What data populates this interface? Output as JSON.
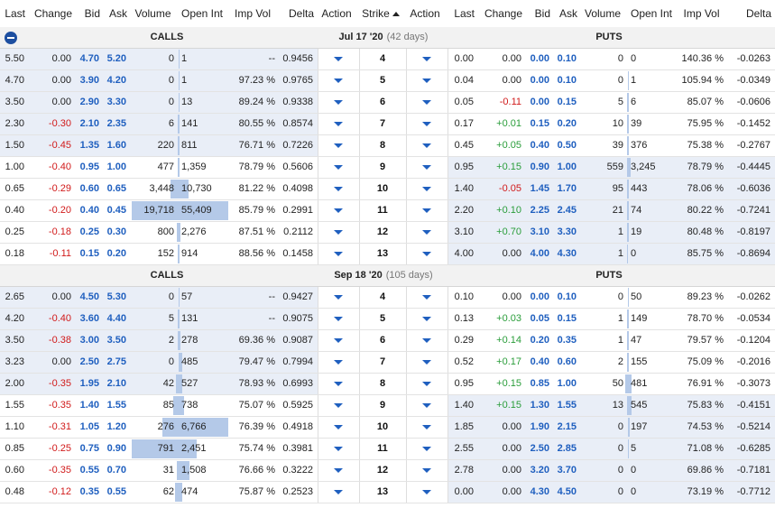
{
  "header": [
    "Last",
    "Change",
    "Bid",
    "Ask",
    "Volume",
    "Open Int",
    "Imp Vol",
    "Delta",
    "Action",
    "Strike",
    "Action",
    "Last",
    "Change",
    "Bid",
    "Ask",
    "Volume",
    "Open Int",
    "Imp Vol",
    "Delta"
  ],
  "groups": [
    {
      "calls_label": "CALLS",
      "expiry": "Jul 17 '20",
      "days": "(42 days)",
      "puts_label": "PUTS",
      "rows": [
        {
          "strike": "4",
          "call": [
            "5.50",
            "0.00",
            "4.70",
            "5.20",
            "0",
            "1",
            "--",
            "0.9456"
          ],
          "put": [
            "0.00",
            "0.00",
            "0.00",
            "0.10",
            "0",
            "0",
            "140.36 %",
            "-0.0263"
          ],
          "call_itm": true,
          "put_itm": false,
          "cvol": 0,
          "coi": 1,
          "pvol": 0,
          "poi": 0
        },
        {
          "strike": "5",
          "call": [
            "4.70",
            "0.00",
            "3.90",
            "4.20",
            "0",
            "1",
            "97.23 %",
            "0.9765"
          ],
          "put": [
            "0.04",
            "0.00",
            "0.00",
            "0.10",
            "0",
            "1",
            "105.94 %",
            "-0.0349"
          ],
          "call_itm": true,
          "put_itm": false,
          "cvol": 0,
          "coi": 1,
          "pvol": 0,
          "poi": 1
        },
        {
          "strike": "6",
          "call": [
            "3.50",
            "0.00",
            "2.90",
            "3.30",
            "0",
            "13",
            "89.24 %",
            "0.9338"
          ],
          "put": [
            "0.05",
            "-0.11",
            "0.00",
            "0.15",
            "5",
            "6",
            "85.07 %",
            "-0.0606"
          ],
          "call_itm": true,
          "put_itm": false,
          "cvol": 0,
          "coi": 13,
          "pvol": 5,
          "poi": 6
        },
        {
          "strike": "7",
          "call": [
            "2.30",
            "-0.30",
            "2.10",
            "2.35",
            "6",
            "141",
            "80.55 %",
            "0.8574"
          ],
          "put": [
            "0.17",
            "+0.01",
            "0.15",
            "0.20",
            "10",
            "39",
            "75.95 %",
            "-0.1452"
          ],
          "call_itm": true,
          "put_itm": false,
          "cvol": 6,
          "coi": 141,
          "pvol": 10,
          "poi": 39
        },
        {
          "strike": "8",
          "call": [
            "1.50",
            "-0.45",
            "1.35",
            "1.60",
            "220",
            "811",
            "76.71 %",
            "0.7226"
          ],
          "put": [
            "0.45",
            "+0.05",
            "0.40",
            "0.50",
            "39",
            "376",
            "75.38 %",
            "-0.2767"
          ],
          "call_itm": true,
          "put_itm": false,
          "cvol": 220,
          "coi": 811,
          "pvol": 39,
          "poi": 376
        },
        {
          "strike": "9",
          "call": [
            "1.00",
            "-0.40",
            "0.95",
            "1.00",
            "477",
            "1,359",
            "78.79 %",
            "0.5606"
          ],
          "put": [
            "0.95",
            "+0.15",
            "0.90",
            "1.00",
            "559",
            "3,245",
            "78.79 %",
            "-0.4445"
          ],
          "call_itm": false,
          "put_itm": true,
          "cvol": 477,
          "coi": 1359,
          "pvol": 559,
          "poi": 3245
        },
        {
          "strike": "10",
          "call": [
            "0.65",
            "-0.29",
            "0.60",
            "0.65",
            "3,448",
            "10,730",
            "81.22 %",
            "0.4098"
          ],
          "put": [
            "1.40",
            "-0.05",
            "1.45",
            "1.70",
            "95",
            "443",
            "78.06 %",
            "-0.6036"
          ],
          "call_itm": false,
          "put_itm": true,
          "cvol": 3448,
          "coi": 10730,
          "pvol": 95,
          "poi": 443
        },
        {
          "strike": "11",
          "call": [
            "0.40",
            "-0.20",
            "0.40",
            "0.45",
            "19,718",
            "55,409",
            "85.79 %",
            "0.2991"
          ],
          "put": [
            "2.20",
            "+0.10",
            "2.25",
            "2.45",
            "21",
            "74",
            "80.22 %",
            "-0.7241"
          ],
          "call_itm": false,
          "put_itm": true,
          "cvol": 19718,
          "coi": 55409,
          "pvol": 21,
          "poi": 74
        },
        {
          "strike": "12",
          "call": [
            "0.25",
            "-0.18",
            "0.25",
            "0.30",
            "800",
            "2,276",
            "87.51 %",
            "0.2112"
          ],
          "put": [
            "3.10",
            "+0.70",
            "3.10",
            "3.30",
            "1",
            "19",
            "80.48 %",
            "-0.8197"
          ],
          "call_itm": false,
          "put_itm": true,
          "cvol": 800,
          "coi": 2276,
          "pvol": 1,
          "poi": 19
        },
        {
          "strike": "13",
          "call": [
            "0.18",
            "-0.11",
            "0.15",
            "0.20",
            "152",
            "914",
            "88.56 %",
            "0.1458"
          ],
          "put": [
            "4.00",
            "0.00",
            "4.00",
            "4.30",
            "1",
            "0",
            "85.75 %",
            "-0.8694"
          ],
          "call_itm": false,
          "put_itm": true,
          "cvol": 152,
          "coi": 914,
          "pvol": 1,
          "poi": 0
        }
      ]
    },
    {
      "calls_label": "CALLS",
      "expiry": "Sep 18 '20",
      "days": "(105 days)",
      "puts_label": "PUTS",
      "rows": [
        {
          "strike": "4",
          "call": [
            "2.65",
            "0.00",
            "4.50",
            "5.30",
            "0",
            "57",
            "--",
            "0.9427"
          ],
          "put": [
            "0.10",
            "0.00",
            "0.00",
            "0.10",
            "0",
            "50",
            "89.23 %",
            "-0.0262"
          ],
          "call_itm": true,
          "put_itm": false,
          "cvol": 0,
          "coi": 57,
          "pvol": 0,
          "poi": 50
        },
        {
          "strike": "5",
          "call": [
            "4.20",
            "-0.40",
            "3.60",
            "4.40",
            "5",
            "131",
            "--",
            "0.9075"
          ],
          "put": [
            "0.13",
            "+0.03",
            "0.05",
            "0.15",
            "1",
            "149",
            "78.70 %",
            "-0.0534"
          ],
          "call_itm": true,
          "put_itm": false,
          "cvol": 5,
          "coi": 131,
          "pvol": 1,
          "poi": 149
        },
        {
          "strike": "6",
          "call": [
            "3.50",
            "-0.38",
            "3.00",
            "3.50",
            "2",
            "278",
            "69.36 %",
            "0.9087"
          ],
          "put": [
            "0.29",
            "+0.14",
            "0.20",
            "0.35",
            "1",
            "47",
            "79.57 %",
            "-0.1204"
          ],
          "call_itm": true,
          "put_itm": false,
          "cvol": 2,
          "coi": 278,
          "pvol": 1,
          "poi": 47
        },
        {
          "strike": "7",
          "call": [
            "3.23",
            "0.00",
            "2.50",
            "2.75",
            "0",
            "485",
            "79.47 %",
            "0.7994"
          ],
          "put": [
            "0.52",
            "+0.17",
            "0.40",
            "0.60",
            "2",
            "155",
            "75.09 %",
            "-0.2016"
          ],
          "call_itm": true,
          "put_itm": false,
          "cvol": 0,
          "coi": 485,
          "pvol": 2,
          "poi": 155
        },
        {
          "strike": "8",
          "call": [
            "2.00",
            "-0.35",
            "1.95",
            "2.10",
            "42",
            "527",
            "78.93 %",
            "0.6993"
          ],
          "put": [
            "0.95",
            "+0.15",
            "0.85",
            "1.00",
            "50",
            "481",
            "76.91 %",
            "-0.3073"
          ],
          "call_itm": true,
          "put_itm": false,
          "cvol": 42,
          "coi": 527,
          "pvol": 50,
          "poi": 481
        },
        {
          "strike": "9",
          "call": [
            "1.55",
            "-0.35",
            "1.40",
            "1.55",
            "85",
            "738",
            "75.07 %",
            "0.5925"
          ],
          "put": [
            "1.40",
            "+0.15",
            "1.30",
            "1.55",
            "13",
            "545",
            "75.83 %",
            "-0.4151"
          ],
          "call_itm": false,
          "put_itm": true,
          "cvol": 85,
          "coi": 738,
          "pvol": 13,
          "poi": 545
        },
        {
          "strike": "10",
          "call": [
            "1.10",
            "-0.31",
            "1.05",
            "1.20",
            "276",
            "6,766",
            "76.39 %",
            "0.4918"
          ],
          "put": [
            "1.85",
            "0.00",
            "1.90",
            "2.15",
            "0",
            "197",
            "74.53 %",
            "-0.5214"
          ],
          "call_itm": false,
          "put_itm": true,
          "cvol": 276,
          "coi": 6766,
          "pvol": 0,
          "poi": 197
        },
        {
          "strike": "11",
          "call": [
            "0.85",
            "-0.25",
            "0.75",
            "0.90",
            "791",
            "2,451",
            "75.74 %",
            "0.3981"
          ],
          "put": [
            "2.55",
            "0.00",
            "2.50",
            "2.85",
            "0",
            "5",
            "71.08 %",
            "-0.6285"
          ],
          "call_itm": false,
          "put_itm": true,
          "cvol": 791,
          "coi": 2451,
          "pvol": 0,
          "poi": 5
        },
        {
          "strike": "12",
          "call": [
            "0.60",
            "-0.35",
            "0.55",
            "0.70",
            "31",
            "1,508",
            "76.66 %",
            "0.3222"
          ],
          "put": [
            "2.78",
            "0.00",
            "3.20",
            "3.70",
            "0",
            "0",
            "69.86 %",
            "-0.7181"
          ],
          "call_itm": false,
          "put_itm": true,
          "cvol": 31,
          "coi": 1508,
          "pvol": 0,
          "poi": 0
        },
        {
          "strike": "13",
          "call": [
            "0.48",
            "-0.12",
            "0.35",
            "0.55",
            "62",
            "474",
            "75.87 %",
            "0.2523"
          ],
          "put": [
            "0.00",
            "0.00",
            "4.30",
            "4.50",
            "0",
            "0",
            "73.19 %",
            "-0.7712"
          ],
          "call_itm": false,
          "put_itm": true,
          "cvol": 62,
          "coi": 474,
          "pvol": 0,
          "poi": 0
        }
      ]
    }
  ],
  "colors": {
    "itm_bg": "#e9eef7",
    "bar": "#b4c9e8",
    "positive": "#2a9d3a",
    "negative": "#d11a1a",
    "bidask": "#1f5fbf",
    "group_bg": "#f2f2f2"
  }
}
